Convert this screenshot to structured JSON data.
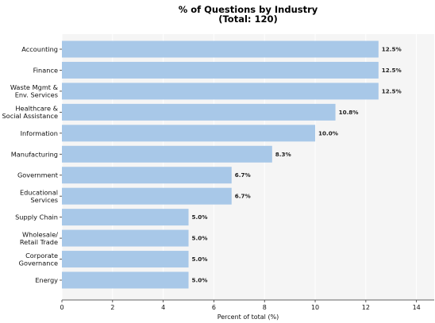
{
  "chart_data": {
    "type": "bar",
    "orientation": "horizontal",
    "title": "% of Questions by Industry\n(Total: 120)",
    "xlabel": "Percent of total (%)",
    "ylabel": "",
    "xlim": [
      0,
      14.7
    ],
    "xticks": [
      "0",
      "2",
      "4",
      "6",
      "8",
      "10",
      "12",
      "14"
    ],
    "grid": true,
    "categories": [
      "Accounting",
      "Finance",
      "Waste Mgmt &\nEnv. Services",
      "Healthcare &\nSocial Assistance",
      "Information",
      "Manufacturing",
      "Government",
      "Educational\nServices",
      "Supply Chain",
      "Wholesale/\nRetail Trade",
      "Corporate\nGovernance",
      "Energy"
    ],
    "values": [
      12.5,
      12.5,
      12.5,
      10.8,
      10.0,
      8.3,
      6.7,
      6.7,
      5.0,
      5.0,
      5.0,
      5.0
    ],
    "value_labels": [
      "12.5%",
      "12.5%",
      "12.5%",
      "10.8%",
      "10.0%",
      "8.3%",
      "6.7%",
      "6.7%",
      "5.0%",
      "5.0%",
      "5.0%",
      "5.0%"
    ],
    "colors": {
      "bar": "#a8c8e8",
      "plot_bg": "#f5f5f5",
      "grid": "#ffffff"
    }
  }
}
